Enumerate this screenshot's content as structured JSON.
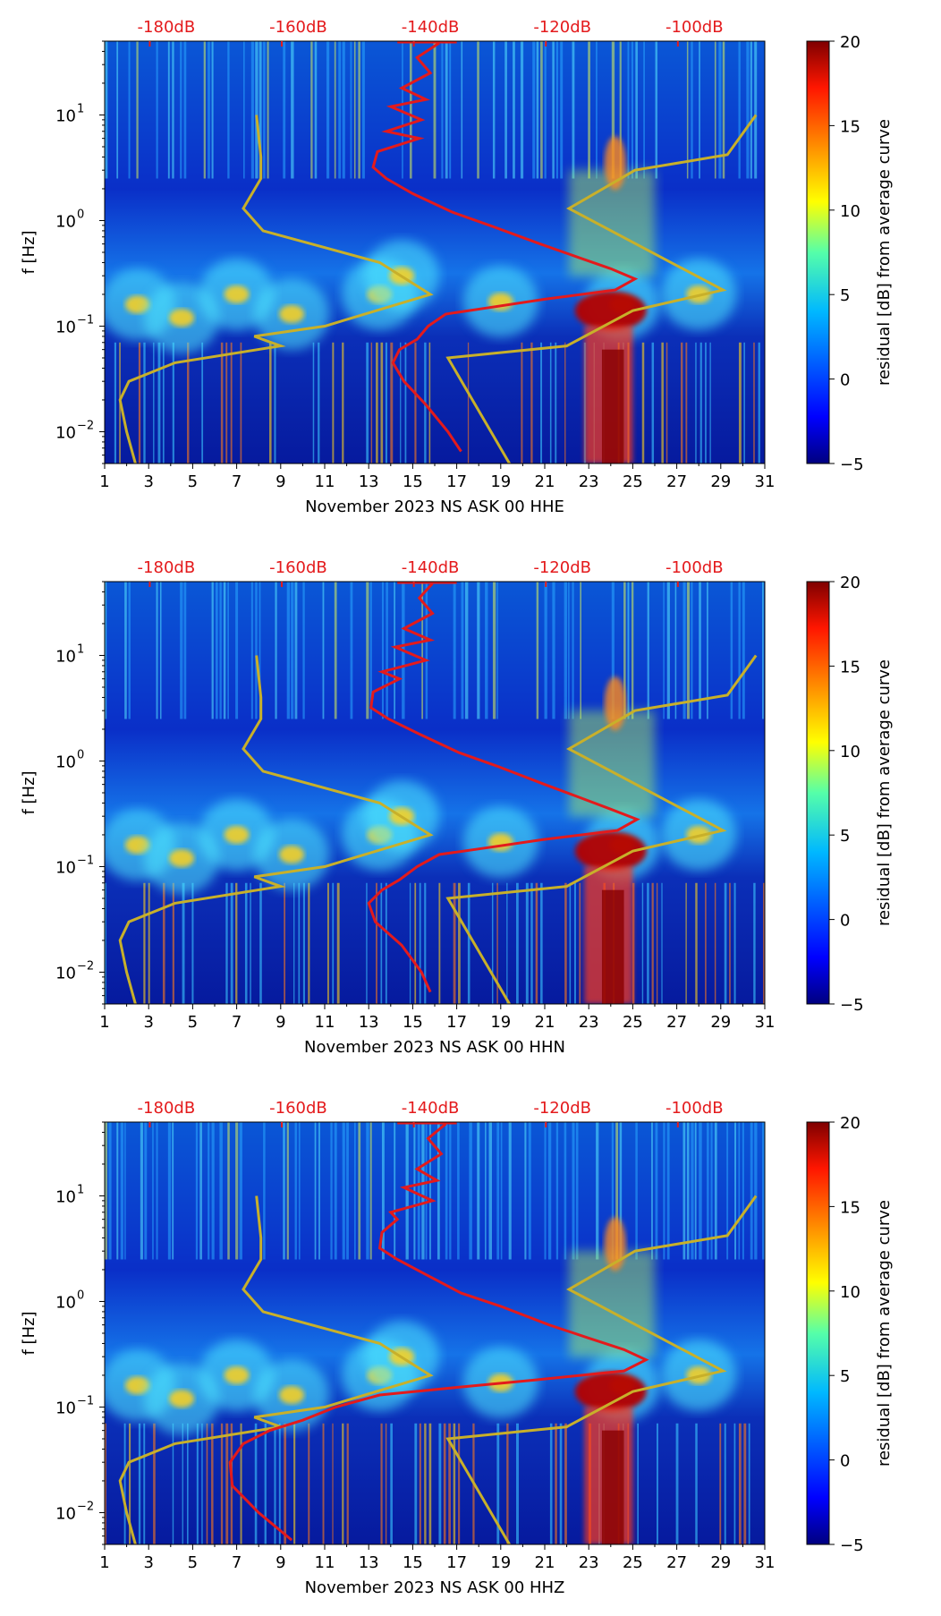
{
  "colors": {
    "pnm_curve": "#e31a1c",
    "noise_model": "#c8b02a",
    "db_label": "#e41a1c",
    "colormap": [
      "#00007f",
      "#0000ff",
      "#007fff",
      "#00ffff",
      "#7fff7f",
      "#ffff00",
      "#ff7f00",
      "#ff0000",
      "#7f0000"
    ]
  },
  "chart_data": [
    {
      "type": "heatmap",
      "xlabel": "November 2023 NS ASK 00 HHE",
      "ylabel": "f [Hz]",
      "colorbar_label": "residual [dB] from average curve",
      "colorbar_ticks": [
        20,
        15,
        10,
        5,
        0,
        -5
      ],
      "colorbar_range": [
        -5,
        20
      ],
      "x_ticks": [
        "1",
        "3",
        "5",
        "7",
        "9",
        "11",
        "13",
        "15",
        "17",
        "19",
        "21",
        "23",
        "25",
        "27",
        "29",
        "31"
      ],
      "xlim": [
        1,
        31
      ],
      "y_ticks": [
        "10",
        "10",
        "10",
        "10"
      ],
      "y_tick_exponents": [
        "1",
        "0",
        "−1",
        "−2"
      ],
      "y_tick_values": [
        10,
        1,
        0.1,
        0.01
      ],
      "ylim": [
        0.005,
        50
      ],
      "db_axis_labels": [
        "-180dB",
        "-160dB",
        "-140dB",
        "-120dB",
        "-100dB"
      ],
      "pnm_curve_day_f": [
        [
          16.2,
          48
        ],
        [
          15.2,
          35
        ],
        [
          15.8,
          25
        ],
        [
          14.5,
          18
        ],
        [
          15.6,
          14
        ],
        [
          14,
          12
        ],
        [
          15.4,
          9
        ],
        [
          13.8,
          7
        ],
        [
          15.3,
          6
        ],
        [
          13.4,
          4.5
        ],
        [
          13.2,
          3.2
        ],
        [
          13.8,
          2.5
        ],
        [
          15,
          1.8
        ],
        [
          16.8,
          1.2
        ],
        [
          18.5,
          0.9
        ],
        [
          20.8,
          0.6
        ],
        [
          22.5,
          0.45
        ],
        [
          24,
          0.35
        ],
        [
          25.1,
          0.28
        ],
        [
          24.2,
          0.22
        ],
        [
          21,
          0.18
        ],
        [
          18.5,
          0.15
        ],
        [
          16.5,
          0.13
        ],
        [
          15.7,
          0.1
        ],
        [
          15.2,
          0.075
        ],
        [
          14.4,
          0.06
        ],
        [
          14.1,
          0.045
        ],
        [
          14.6,
          0.03
        ],
        [
          15.6,
          0.018
        ],
        [
          16.6,
          0.01
        ],
        [
          17.2,
          0.0065
        ]
      ],
      "noise_model_day_f": [
        [
          7.9,
          10
        ],
        [
          8.1,
          4
        ],
        [
          8.1,
          2.5
        ],
        [
          7.3,
          1.3
        ],
        [
          8.2,
          0.8
        ],
        [
          13.5,
          0.4
        ],
        [
          15.8,
          0.2
        ],
        [
          11,
          0.1
        ],
        [
          7.8,
          0.08
        ],
        [
          9,
          0.065
        ],
        [
          4.2,
          0.045
        ],
        [
          2.1,
          0.03
        ],
        [
          1.7,
          0.02
        ],
        [
          2,
          0.01
        ],
        [
          2.4,
          0.005
        ]
      ],
      "high_noise_model_day_f": [
        [
          30.6,
          10
        ],
        [
          29.3,
          4.2
        ],
        [
          25.1,
          3
        ],
        [
          22.1,
          1.3
        ],
        [
          29.1,
          0.22
        ],
        [
          25,
          0.14
        ],
        [
          22,
          0.065
        ],
        [
          16.6,
          0.05
        ],
        [
          19.4,
          0.005
        ]
      ]
    },
    {
      "type": "heatmap",
      "xlabel": "November 2023 NS ASK 00 HHN",
      "ylabel": "f [Hz]",
      "colorbar_label": "residual [dB] from average curve",
      "colorbar_ticks": [
        20,
        15,
        10,
        5,
        0,
        -5
      ],
      "colorbar_range": [
        -5,
        20
      ],
      "x_ticks": [
        "1",
        "3",
        "5",
        "7",
        "9",
        "11",
        "13",
        "15",
        "17",
        "19",
        "21",
        "23",
        "25",
        "27",
        "29",
        "31"
      ],
      "xlim": [
        1,
        31
      ],
      "y_ticks": [
        "10",
        "10",
        "10",
        "10"
      ],
      "y_tick_exponents": [
        "1",
        "0",
        "−1",
        "−2"
      ],
      "y_tick_values": [
        10,
        1,
        0.1,
        0.01
      ],
      "ylim": [
        0.005,
        50
      ],
      "db_axis_labels": [
        "-180dB",
        "-160dB",
        "-140dB",
        "-120dB",
        "-100dB"
      ],
      "pnm_curve_day_f": [
        [
          15.9,
          48
        ],
        [
          15.3,
          35
        ],
        [
          15.9,
          25
        ],
        [
          14.6,
          18
        ],
        [
          15.8,
          14
        ],
        [
          14.2,
          12
        ],
        [
          15.6,
          9
        ],
        [
          13.6,
          7
        ],
        [
          14.4,
          6
        ],
        [
          13.2,
          4.5
        ],
        [
          13.1,
          3.2
        ],
        [
          13.9,
          2.5
        ],
        [
          15.3,
          1.8
        ],
        [
          17.1,
          1.2
        ],
        [
          18.8,
          0.9
        ],
        [
          21,
          0.6
        ],
        [
          22.6,
          0.45
        ],
        [
          24,
          0.35
        ],
        [
          25.2,
          0.28
        ],
        [
          24.3,
          0.22
        ],
        [
          20.9,
          0.18
        ],
        [
          18.3,
          0.15
        ],
        [
          16.2,
          0.13
        ],
        [
          15.2,
          0.1
        ],
        [
          14.4,
          0.075
        ],
        [
          13.6,
          0.06
        ],
        [
          13,
          0.045
        ],
        [
          13.3,
          0.03
        ],
        [
          14.5,
          0.018
        ],
        [
          15.4,
          0.01
        ],
        [
          15.8,
          0.0065
        ]
      ],
      "noise_model_day_f": [
        [
          7.9,
          10
        ],
        [
          8.1,
          4
        ],
        [
          8.1,
          2.5
        ],
        [
          7.3,
          1.3
        ],
        [
          8.2,
          0.8
        ],
        [
          13.5,
          0.4
        ],
        [
          15.8,
          0.2
        ],
        [
          11,
          0.1
        ],
        [
          7.8,
          0.08
        ],
        [
          9,
          0.065
        ],
        [
          4.2,
          0.045
        ],
        [
          2.1,
          0.03
        ],
        [
          1.7,
          0.02
        ],
        [
          2,
          0.01
        ],
        [
          2.4,
          0.005
        ]
      ],
      "high_noise_model_day_f": [
        [
          30.6,
          10
        ],
        [
          29.3,
          4.2
        ],
        [
          25.1,
          3
        ],
        [
          22.1,
          1.3
        ],
        [
          29.1,
          0.22
        ],
        [
          25,
          0.14
        ],
        [
          22,
          0.065
        ],
        [
          16.6,
          0.05
        ],
        [
          19.4,
          0.005
        ]
      ]
    },
    {
      "type": "heatmap",
      "xlabel": "November 2023 NS ASK 00 HHZ",
      "ylabel": "f [Hz]",
      "colorbar_label": "residual [dB] from average curve",
      "colorbar_ticks": [
        20,
        15,
        10,
        5,
        0,
        -5
      ],
      "colorbar_range": [
        -5,
        20
      ],
      "x_ticks": [
        "1",
        "3",
        "5",
        "7",
        "9",
        "11",
        "13",
        "15",
        "17",
        "19",
        "21",
        "23",
        "25",
        "27",
        "29",
        "31"
      ],
      "xlim": [
        1,
        31
      ],
      "y_ticks": [
        "10",
        "10",
        "10",
        "10"
      ],
      "y_tick_exponents": [
        "1",
        "0",
        "−1",
        "−2"
      ],
      "y_tick_values": [
        10,
        1,
        0.1,
        0.01
      ],
      "ylim": [
        0.005,
        50
      ],
      "db_axis_labels": [
        "-180dB",
        "-160dB",
        "-140dB",
        "-120dB",
        "-100dB"
      ],
      "pnm_curve_day_f": [
        [
          16.5,
          48
        ],
        [
          15.7,
          35
        ],
        [
          16.3,
          25
        ],
        [
          15.2,
          18
        ],
        [
          16.1,
          14
        ],
        [
          14.6,
          12
        ],
        [
          15.9,
          9
        ],
        [
          14,
          7
        ],
        [
          14.3,
          6
        ],
        [
          13.6,
          4.5
        ],
        [
          13.5,
          3.2
        ],
        [
          14.3,
          2.5
        ],
        [
          15.6,
          1.8
        ],
        [
          17.2,
          1.2
        ],
        [
          19,
          0.9
        ],
        [
          21.2,
          0.6
        ],
        [
          23,
          0.45
        ],
        [
          24.6,
          0.35
        ],
        [
          25.6,
          0.28
        ],
        [
          24.6,
          0.22
        ],
        [
          20.5,
          0.18
        ],
        [
          16.5,
          0.15
        ],
        [
          13.5,
          0.13
        ],
        [
          11.5,
          0.1
        ],
        [
          10,
          0.075
        ],
        [
          8.5,
          0.06
        ],
        [
          7.3,
          0.045
        ],
        [
          6.7,
          0.03
        ],
        [
          6.8,
          0.018
        ],
        [
          8,
          0.01
        ],
        [
          9.5,
          0.0055
        ]
      ],
      "noise_model_day_f": [
        [
          7.9,
          10
        ],
        [
          8.1,
          4
        ],
        [
          8.1,
          2.5
        ],
        [
          7.3,
          1.3
        ],
        [
          8.2,
          0.8
        ],
        [
          13.5,
          0.4
        ],
        [
          15.8,
          0.2
        ],
        [
          11,
          0.1
        ],
        [
          7.8,
          0.08
        ],
        [
          9,
          0.065
        ],
        [
          4.2,
          0.045
        ],
        [
          2.1,
          0.03
        ],
        [
          1.7,
          0.02
        ],
        [
          2,
          0.01
        ],
        [
          2.4,
          0.005
        ]
      ],
      "high_noise_model_day_f": [
        [
          30.6,
          10
        ],
        [
          29.3,
          4.2
        ],
        [
          25.1,
          3
        ],
        [
          22.1,
          1.3
        ],
        [
          29.1,
          0.22
        ],
        [
          25,
          0.14
        ],
        [
          22,
          0.065
        ],
        [
          16.6,
          0.05
        ],
        [
          19.4,
          0.005
        ]
      ]
    }
  ]
}
